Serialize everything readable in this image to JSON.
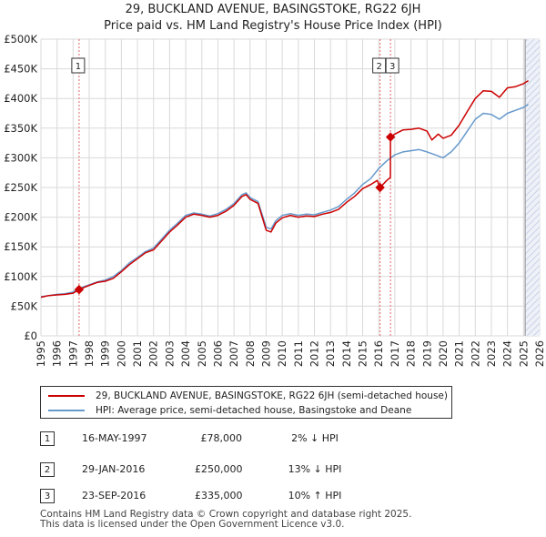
{
  "title": {
    "line1": "29, BUCKLAND AVENUE, BASINGSTOKE, RG22 6JH",
    "line2": "Price paid vs. HM Land Registry's House Price Index (HPI)"
  },
  "colors": {
    "property": "#cc0000",
    "hpi": "#6699cc",
    "marker": "#cc0000",
    "vline": "#e06666",
    "shade": "#dde4f2"
  },
  "chart_data": {
    "type": "line",
    "title": "29, BUCKLAND AVENUE, BASINGSTOKE, RG22 6JH",
    "subtitle": "Price paid vs. HM Land Registry's House Price Index (HPI)",
    "xlabel": "",
    "ylabel": "",
    "xlim": [
      1995,
      2026
    ],
    "ylim": [
      0,
      500000
    ],
    "x_ticks": [
      "1995",
      "1996",
      "1997",
      "1998",
      "1999",
      "2000",
      "2001",
      "2002",
      "2003",
      "2004",
      "2005",
      "2006",
      "2007",
      "2008",
      "2009",
      "2010",
      "2011",
      "2012",
      "2013",
      "2014",
      "2015",
      "2016",
      "2017",
      "2018",
      "2019",
      "2020",
      "2021",
      "2022",
      "2023",
      "2024",
      "2025",
      "2026"
    ],
    "y_ticks": [
      {
        "value": 0,
        "label": "£0"
      },
      {
        "value": 50000,
        "label": "£50K"
      },
      {
        "value": 100000,
        "label": "£100K"
      },
      {
        "value": 150000,
        "label": "£150K"
      },
      {
        "value": 200000,
        "label": "£200K"
      },
      {
        "value": 250000,
        "label": "£250K"
      },
      {
        "value": 300000,
        "label": "£300K"
      },
      {
        "value": 350000,
        "label": "£350K"
      },
      {
        "value": 400000,
        "label": "£400K"
      },
      {
        "value": 450000,
        "label": "£450K"
      },
      {
        "value": 500000,
        "label": "£500K"
      }
    ],
    "grid": true,
    "future_shaded_from": 2025.1,
    "series": [
      {
        "name": "29, BUCKLAND AVENUE, BASINGSTOKE, RG22 6JH (semi-detached house)",
        "color": "#cc0000",
        "points": [
          [
            1995.0,
            65000
          ],
          [
            1995.5,
            68000
          ],
          [
            1996.0,
            69000
          ],
          [
            1996.5,
            70000
          ],
          [
            1997.0,
            72000
          ],
          [
            1997.37,
            78000
          ],
          [
            1998.0,
            85000
          ],
          [
            1998.5,
            90000
          ],
          [
            1999.0,
            92000
          ],
          [
            1999.5,
            97000
          ],
          [
            2000.0,
            108000
          ],
          [
            2000.5,
            120000
          ],
          [
            2001.0,
            130000
          ],
          [
            2001.5,
            140000
          ],
          [
            2002.0,
            145000
          ],
          [
            2002.5,
            160000
          ],
          [
            2003.0,
            175000
          ],
          [
            2003.5,
            187000
          ],
          [
            2004.0,
            200000
          ],
          [
            2004.5,
            205000
          ],
          [
            2005.0,
            203000
          ],
          [
            2005.5,
            200000
          ],
          [
            2006.0,
            203000
          ],
          [
            2006.5,
            210000
          ],
          [
            2007.0,
            220000
          ],
          [
            2007.5,
            235000
          ],
          [
            2007.75,
            238000
          ],
          [
            2008.0,
            230000
          ],
          [
            2008.5,
            223000
          ],
          [
            2009.0,
            178000
          ],
          [
            2009.3,
            175000
          ],
          [
            2009.6,
            190000
          ],
          [
            2010.0,
            199000
          ],
          [
            2010.5,
            203000
          ],
          [
            2011.0,
            200000
          ],
          [
            2011.5,
            202000
          ],
          [
            2012.0,
            201000
          ],
          [
            2012.5,
            205000
          ],
          [
            2013.0,
            208000
          ],
          [
            2013.5,
            213000
          ],
          [
            2014.0,
            225000
          ],
          [
            2014.5,
            235000
          ],
          [
            2015.0,
            248000
          ],
          [
            2015.5,
            255000
          ],
          [
            2015.9,
            262000
          ],
          [
            2016.08,
            250000
          ],
          [
            2016.5,
            262000
          ],
          [
            2016.72,
            267000
          ],
          [
            2016.73,
            335000
          ],
          [
            2017.0,
            340000
          ],
          [
            2017.5,
            347000
          ],
          [
            2018.0,
            348000
          ],
          [
            2018.5,
            350000
          ],
          [
            2019.0,
            345000
          ],
          [
            2019.3,
            330000
          ],
          [
            2019.7,
            340000
          ],
          [
            2020.0,
            333000
          ],
          [
            2020.5,
            338000
          ],
          [
            2021.0,
            355000
          ],
          [
            2021.5,
            378000
          ],
          [
            2022.0,
            400000
          ],
          [
            2022.5,
            413000
          ],
          [
            2023.0,
            412000
          ],
          [
            2023.5,
            402000
          ],
          [
            2024.0,
            418000
          ],
          [
            2024.5,
            420000
          ],
          [
            2025.0,
            425000
          ],
          [
            2025.3,
            430000
          ]
        ]
      },
      {
        "name": "HPI: Average price, semi-detached house, Basingstoke and Deane",
        "color": "#6699cc",
        "points": [
          [
            1995.0,
            66000
          ],
          [
            1995.5,
            68000
          ],
          [
            1996.0,
            70000
          ],
          [
            1996.5,
            71000
          ],
          [
            1997.0,
            74000
          ],
          [
            1997.37,
            80000
          ],
          [
            1998.0,
            86000
          ],
          [
            1998.5,
            91000
          ],
          [
            1999.0,
            94000
          ],
          [
            1999.5,
            100000
          ],
          [
            2000.0,
            110000
          ],
          [
            2000.5,
            123000
          ],
          [
            2001.0,
            132000
          ],
          [
            2001.5,
            142000
          ],
          [
            2002.0,
            148000
          ],
          [
            2002.5,
            163000
          ],
          [
            2003.0,
            178000
          ],
          [
            2003.5,
            190000
          ],
          [
            2004.0,
            203000
          ],
          [
            2004.5,
            207000
          ],
          [
            2005.0,
            205000
          ],
          [
            2005.5,
            202000
          ],
          [
            2006.0,
            206000
          ],
          [
            2006.5,
            213000
          ],
          [
            2007.0,
            223000
          ],
          [
            2007.5,
            238000
          ],
          [
            2007.75,
            241000
          ],
          [
            2008.0,
            233000
          ],
          [
            2008.5,
            226000
          ],
          [
            2009.0,
            183000
          ],
          [
            2009.3,
            180000
          ],
          [
            2009.6,
            194000
          ],
          [
            2010.0,
            203000
          ],
          [
            2010.5,
            206000
          ],
          [
            2011.0,
            203000
          ],
          [
            2011.5,
            205000
          ],
          [
            2012.0,
            204000
          ],
          [
            2012.5,
            208000
          ],
          [
            2013.0,
            212000
          ],
          [
            2013.5,
            218000
          ],
          [
            2014.0,
            230000
          ],
          [
            2014.5,
            241000
          ],
          [
            2015.0,
            255000
          ],
          [
            2015.5,
            265000
          ],
          [
            2016.0,
            282000
          ],
          [
            2016.5,
            295000
          ],
          [
            2017.0,
            305000
          ],
          [
            2017.5,
            310000
          ],
          [
            2018.0,
            312000
          ],
          [
            2018.5,
            314000
          ],
          [
            2019.0,
            310000
          ],
          [
            2019.5,
            305000
          ],
          [
            2020.0,
            300000
          ],
          [
            2020.5,
            310000
          ],
          [
            2021.0,
            325000
          ],
          [
            2021.5,
            345000
          ],
          [
            2022.0,
            365000
          ],
          [
            2022.5,
            375000
          ],
          [
            2023.0,
            373000
          ],
          [
            2023.5,
            365000
          ],
          [
            2024.0,
            375000
          ],
          [
            2024.5,
            380000
          ],
          [
            2025.0,
            385000
          ],
          [
            2025.3,
            390000
          ]
        ]
      }
    ],
    "sales": [
      {
        "label": "1",
        "x": 1997.37,
        "price": 78000
      },
      {
        "label": "2",
        "x": 2016.08,
        "price": 250000
      },
      {
        "label": "3",
        "x": 2016.73,
        "price": 335000
      }
    ]
  },
  "legend": {
    "property": "29, BUCKLAND AVENUE, BASINGSTOKE, RG22 6JH (semi-detached house)",
    "hpi": "HPI: Average price, semi-detached house, Basingstoke and Deane"
  },
  "transactions": [
    {
      "num": "1",
      "date": "16-MAY-1997",
      "price": "£78,000",
      "hpi": "2% ↓ HPI"
    },
    {
      "num": "2",
      "date": "29-JAN-2016",
      "price": "£250,000",
      "hpi": "13% ↓ HPI"
    },
    {
      "num": "3",
      "date": "23-SEP-2016",
      "price": "£335,000",
      "hpi": "10% ↑ HPI"
    }
  ],
  "footer": {
    "line1": "Contains HM Land Registry data © Crown copyright and database right 2025.",
    "line2": "This data is licensed under the Open Government Licence v3.0."
  }
}
